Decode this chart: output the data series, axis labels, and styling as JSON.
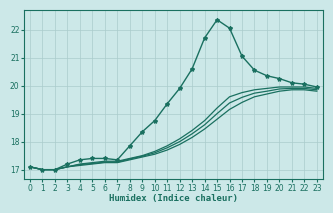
{
  "title": "",
  "xlabel": "Humidex (Indice chaleur)",
  "ylabel": "",
  "bg_color": "#cce8e8",
  "line_color": "#1a7060",
  "grid_color": "#aacccc",
  "xlim": [
    -0.5,
    23.5
  ],
  "ylim": [
    16.65,
    22.7
  ],
  "yticks": [
    17,
    18,
    19,
    20,
    21,
    22
  ],
  "xticks": [
    0,
    1,
    2,
    3,
    4,
    5,
    6,
    7,
    8,
    9,
    10,
    11,
    12,
    13,
    14,
    15,
    16,
    17,
    18,
    19,
    20,
    21,
    22,
    23
  ],
  "curves": [
    {
      "x": [
        0,
        1,
        2,
        3,
        4,
        5,
        6,
        7,
        8,
        9,
        10,
        11,
        12,
        13,
        14,
        15,
        16,
        17,
        18,
        19,
        20,
        21,
        22,
        23
      ],
      "y": [
        17.1,
        17.0,
        17.0,
        17.2,
        17.35,
        17.4,
        17.4,
        17.35,
        17.85,
        18.35,
        18.75,
        19.35,
        19.9,
        20.6,
        21.7,
        22.35,
        22.05,
        21.05,
        20.55,
        20.35,
        20.25,
        20.1,
        20.05,
        19.95
      ],
      "marker": true
    },
    {
      "x": [
        0,
        1,
        2,
        3,
        4,
        5,
        6,
        7,
        8,
        9,
        10,
        11,
        12,
        13,
        14,
        15,
        16,
        17,
        18,
        19,
        20,
        21,
        22,
        23
      ],
      "y": [
        17.1,
        17.0,
        17.0,
        17.1,
        17.2,
        17.25,
        17.3,
        17.3,
        17.4,
        17.5,
        17.65,
        17.85,
        18.1,
        18.4,
        18.75,
        19.2,
        19.6,
        19.75,
        19.85,
        19.9,
        19.95,
        19.95,
        19.95,
        19.9
      ],
      "marker": false
    },
    {
      "x": [
        0,
        1,
        2,
        3,
        4,
        5,
        6,
        7,
        8,
        9,
        10,
        11,
        12,
        13,
        14,
        15,
        16,
        17,
        18,
        19,
        20,
        21,
        22,
        23
      ],
      "y": [
        17.1,
        17.0,
        17.0,
        17.1,
        17.15,
        17.2,
        17.25,
        17.25,
        17.35,
        17.45,
        17.55,
        17.7,
        17.9,
        18.15,
        18.45,
        18.8,
        19.15,
        19.4,
        19.6,
        19.7,
        19.8,
        19.85,
        19.85,
        19.8
      ],
      "marker": false
    },
    {
      "x": [
        0,
        1,
        2,
        3,
        4,
        5,
        6,
        7,
        8,
        9,
        10,
        11,
        12,
        13,
        14,
        15,
        16,
        17,
        18,
        19,
        20,
        21,
        22,
        23
      ],
      "y": [
        17.1,
        17.0,
        17.0,
        17.1,
        17.18,
        17.22,
        17.27,
        17.27,
        17.38,
        17.48,
        17.6,
        17.78,
        18.0,
        18.28,
        18.6,
        19.0,
        19.38,
        19.58,
        19.73,
        19.8,
        19.88,
        19.9,
        19.9,
        19.85
      ],
      "marker": false
    }
  ]
}
